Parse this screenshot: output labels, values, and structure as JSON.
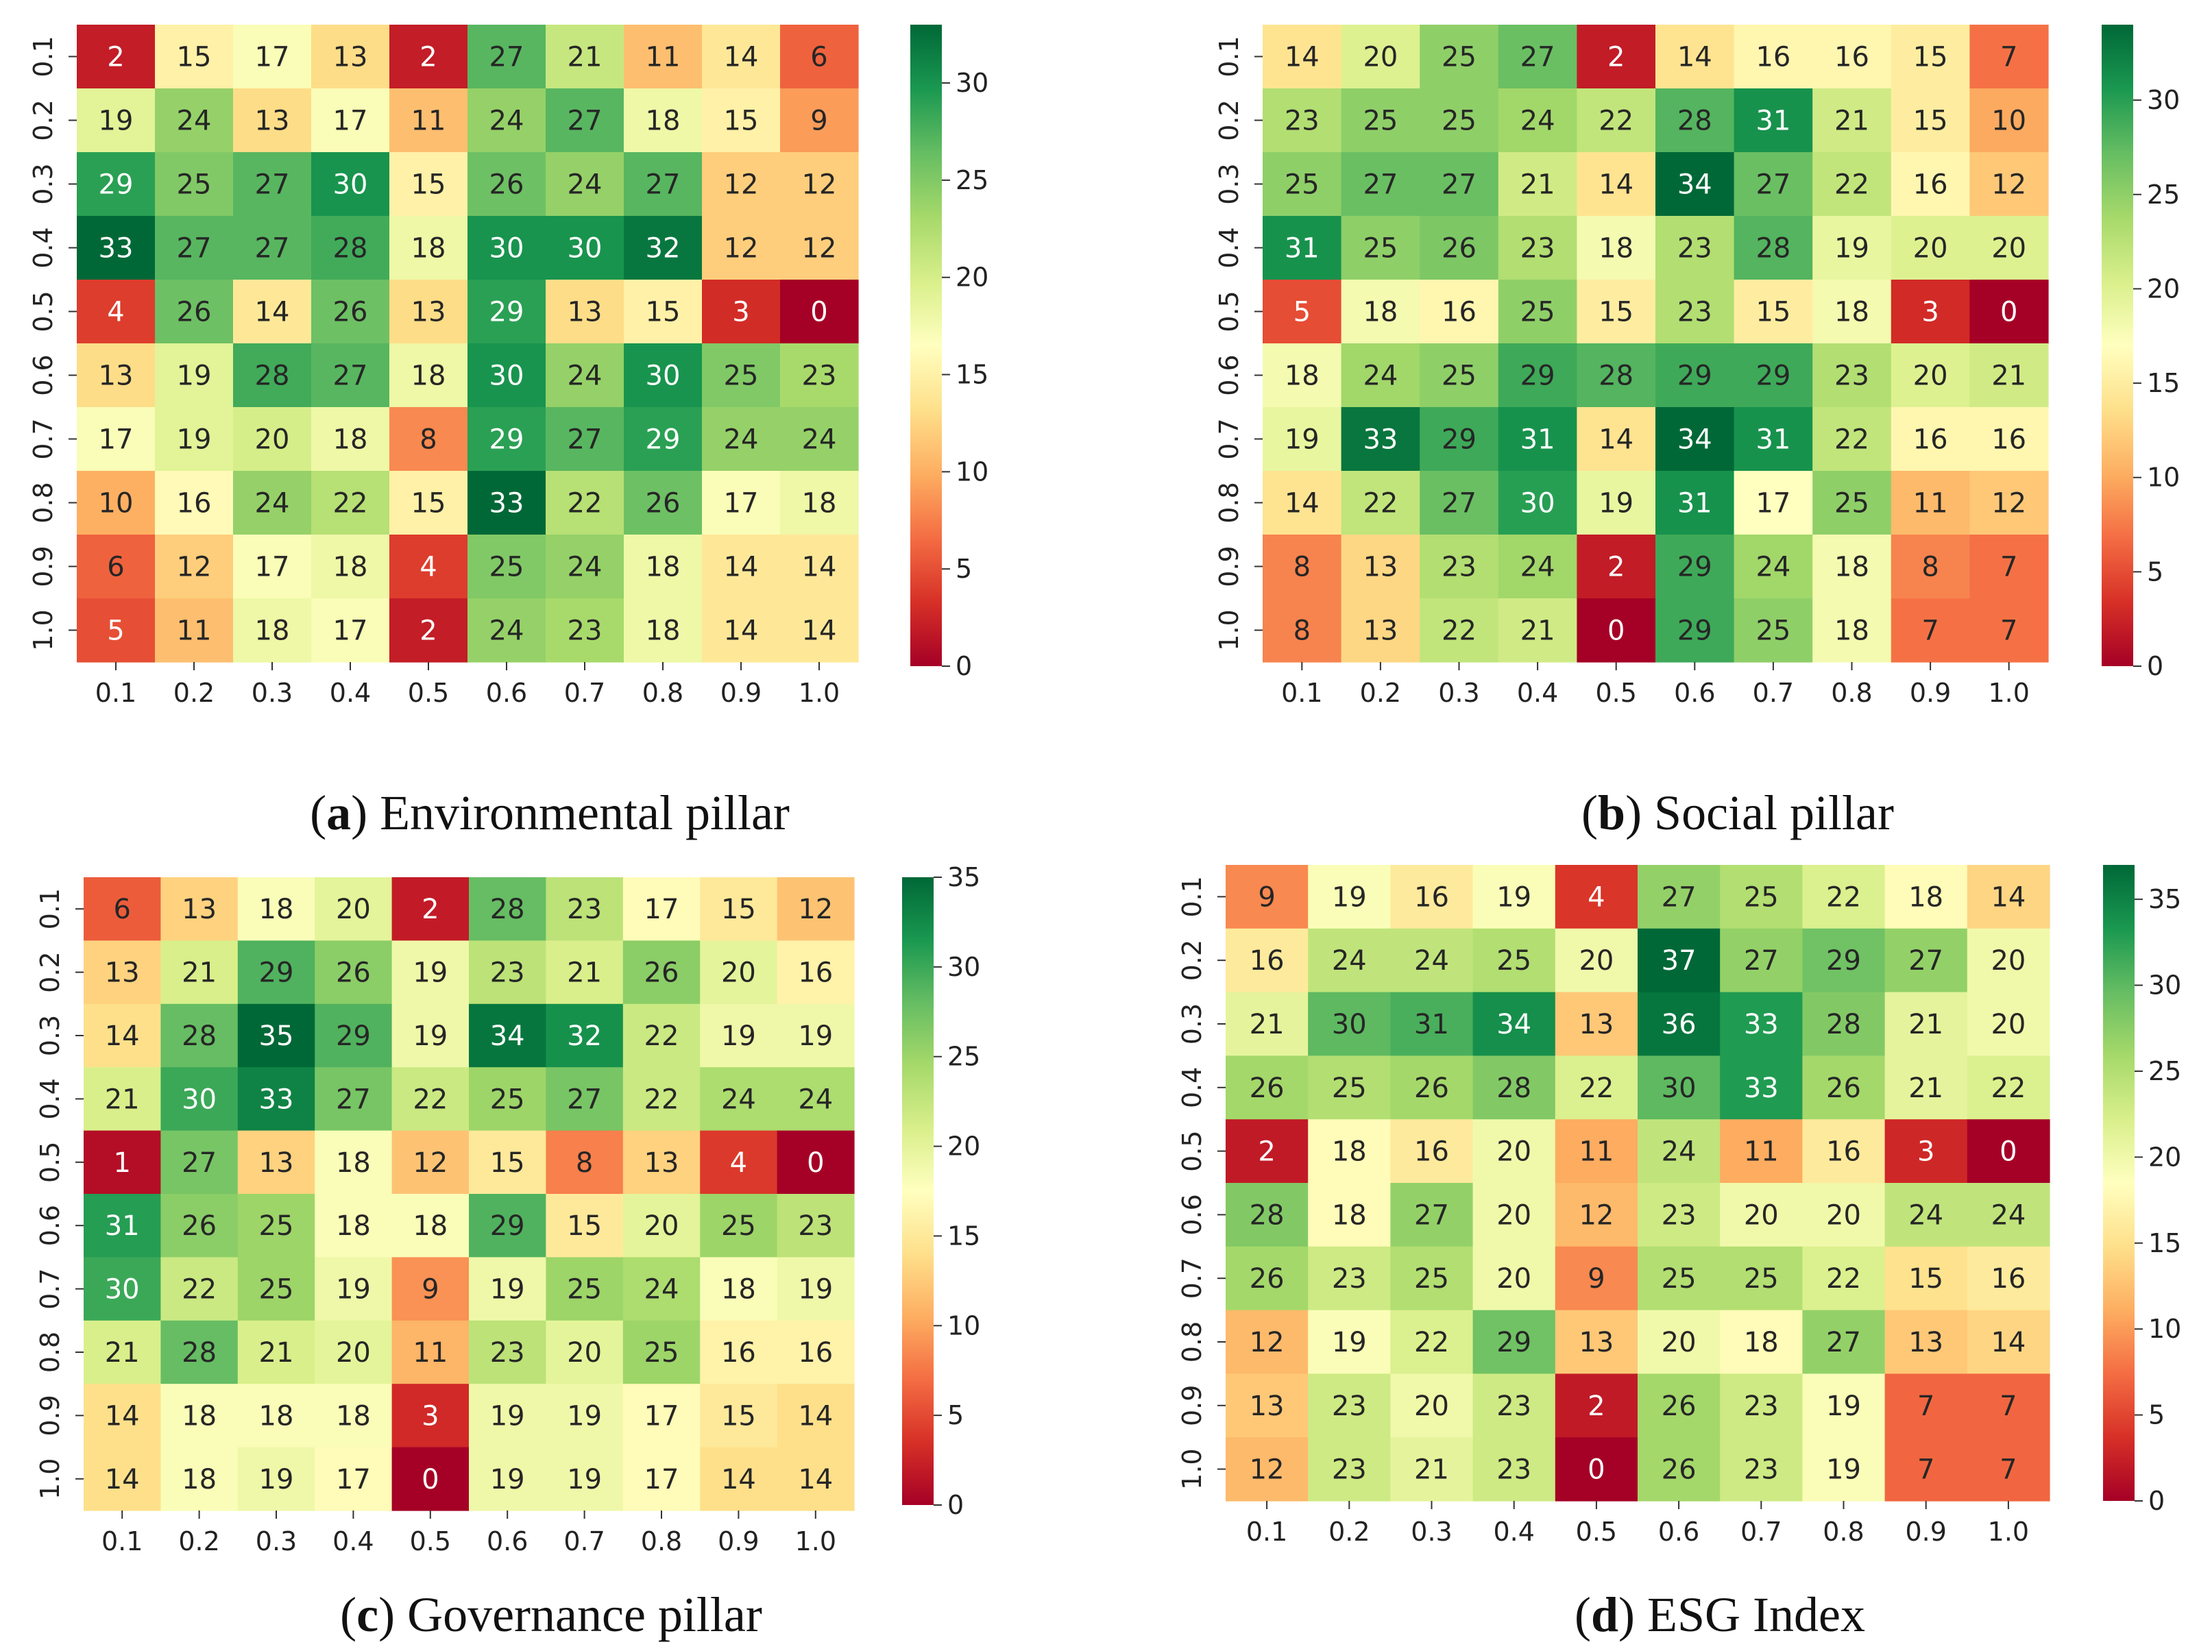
{
  "figure": {
    "colormap": [
      "#a50026",
      "#d73027",
      "#f46d43",
      "#fdae61",
      "#fee08b",
      "#ffffbf",
      "#d9ef8b",
      "#a6d96a",
      "#66bd63",
      "#1a9850",
      "#006837"
    ]
  },
  "chart_data": [
    {
      "type": "heatmap",
      "caption_letter": "a",
      "caption_text": "Environmental pillar",
      "x_ticks": [
        "0.1",
        "0.2",
        "0.3",
        "0.4",
        "0.5",
        "0.6",
        "0.7",
        "0.8",
        "0.9",
        "1.0"
      ],
      "y_ticks": [
        "0.1",
        "0.2",
        "0.3",
        "0.4",
        "0.5",
        "0.6",
        "0.7",
        "0.8",
        "0.9",
        "1.0"
      ],
      "values": [
        [
          2,
          15,
          17,
          13,
          2,
          27,
          21,
          11,
          14,
          6
        ],
        [
          19,
          24,
          13,
          17,
          11,
          24,
          27,
          18,
          15,
          9
        ],
        [
          29,
          25,
          27,
          30,
          15,
          26,
          24,
          27,
          12,
          12
        ],
        [
          33,
          27,
          27,
          28,
          18,
          30,
          30,
          32,
          12,
          12
        ],
        [
          4,
          26,
          14,
          26,
          13,
          29,
          13,
          15,
          3,
          0
        ],
        [
          13,
          19,
          28,
          27,
          18,
          30,
          24,
          30,
          25,
          23
        ],
        [
          17,
          19,
          20,
          18,
          8,
          29,
          27,
          29,
          24,
          24
        ],
        [
          10,
          16,
          24,
          22,
          15,
          33,
          22,
          26,
          17,
          18
        ],
        [
          6,
          12,
          17,
          18,
          4,
          25,
          24,
          18,
          14,
          14
        ],
        [
          5,
          11,
          18,
          17,
          2,
          24,
          23,
          18,
          14,
          14
        ]
      ],
      "vmin": 0,
      "vmax": 33,
      "colorbar_ticks": [
        "0",
        "5",
        "10",
        "15",
        "20",
        "25",
        "30"
      ]
    },
    {
      "type": "heatmap",
      "caption_letter": "b",
      "caption_text": "Social pillar",
      "x_ticks": [
        "0.1",
        "0.2",
        "0.3",
        "0.4",
        "0.5",
        "0.6",
        "0.7",
        "0.8",
        "0.9",
        "1.0"
      ],
      "y_ticks": [
        "0.1",
        "0.2",
        "0.3",
        "0.4",
        "0.5",
        "0.6",
        "0.7",
        "0.8",
        "0.9",
        "1.0"
      ],
      "values": [
        [
          14,
          20,
          25,
          27,
          2,
          14,
          16,
          16,
          15,
          7
        ],
        [
          23,
          25,
          25,
          24,
          22,
          28,
          31,
          21,
          15,
          10
        ],
        [
          25,
          27,
          27,
          21,
          14,
          34,
          27,
          22,
          16,
          12
        ],
        [
          31,
          25,
          26,
          23,
          18,
          23,
          28,
          19,
          20,
          20
        ],
        [
          5,
          18,
          16,
          25,
          15,
          23,
          15,
          18,
          3,
          0
        ],
        [
          18,
          24,
          25,
          29,
          28,
          29,
          29,
          23,
          20,
          21
        ],
        [
          19,
          33,
          29,
          31,
          14,
          34,
          31,
          22,
          16,
          16
        ],
        [
          14,
          22,
          27,
          30,
          19,
          31,
          17,
          25,
          11,
          12
        ],
        [
          8,
          13,
          23,
          24,
          2,
          29,
          24,
          18,
          8,
          7
        ],
        [
          8,
          13,
          22,
          21,
          0,
          29,
          25,
          18,
          7,
          7
        ]
      ],
      "vmin": 0,
      "vmax": 34,
      "colorbar_ticks": [
        "0",
        "5",
        "10",
        "15",
        "20",
        "25",
        "30"
      ]
    },
    {
      "type": "heatmap",
      "caption_letter": "c",
      "caption_text": "Governance pillar",
      "x_ticks": [
        "0.1",
        "0.2",
        "0.3",
        "0.4",
        "0.5",
        "0.6",
        "0.7",
        "0.8",
        "0.9",
        "1.0"
      ],
      "y_ticks": [
        "0.1",
        "0.2",
        "0.3",
        "0.4",
        "0.5",
        "0.6",
        "0.7",
        "0.8",
        "0.9",
        "1.0"
      ],
      "values": [
        [
          6,
          13,
          18,
          20,
          2,
          28,
          23,
          17,
          15,
          12
        ],
        [
          13,
          21,
          29,
          26,
          19,
          23,
          21,
          26,
          20,
          16
        ],
        [
          14,
          28,
          35,
          29,
          19,
          34,
          32,
          22,
          19,
          19
        ],
        [
          21,
          30,
          33,
          27,
          22,
          25,
          27,
          22,
          24,
          24
        ],
        [
          1,
          27,
          13,
          18,
          12,
          15,
          8,
          13,
          4,
          0
        ],
        [
          31,
          26,
          25,
          18,
          18,
          29,
          15,
          20,
          25,
          23
        ],
        [
          30,
          22,
          25,
          19,
          9,
          19,
          25,
          24,
          18,
          19
        ],
        [
          21,
          28,
          21,
          20,
          11,
          23,
          20,
          25,
          16,
          16
        ],
        [
          14,
          18,
          18,
          18,
          3,
          19,
          19,
          17,
          15,
          14
        ],
        [
          14,
          18,
          19,
          17,
          0,
          19,
          19,
          17,
          14,
          14
        ]
      ],
      "vmin": 0,
      "vmax": 35,
      "colorbar_ticks": [
        "0",
        "5",
        "10",
        "15",
        "20",
        "25",
        "30",
        "35"
      ]
    },
    {
      "type": "heatmap",
      "caption_letter": "d",
      "caption_text": "ESG Index",
      "x_ticks": [
        "0.1",
        "0.2",
        "0.3",
        "0.4",
        "0.5",
        "0.6",
        "0.7",
        "0.8",
        "0.9",
        "1.0"
      ],
      "y_ticks": [
        "0.1",
        "0.2",
        "0.3",
        "0.4",
        "0.5",
        "0.6",
        "0.7",
        "0.8",
        "0.9",
        "1.0"
      ],
      "values": [
        [
          9,
          19,
          16,
          19,
          4,
          27,
          25,
          22,
          18,
          14
        ],
        [
          16,
          24,
          24,
          25,
          20,
          37,
          27,
          29,
          27,
          20
        ],
        [
          21,
          30,
          31,
          34,
          13,
          36,
          33,
          28,
          21,
          20
        ],
        [
          26,
          25,
          26,
          28,
          22,
          30,
          33,
          26,
          21,
          22
        ],
        [
          2,
          18,
          16,
          20,
          11,
          24,
          11,
          16,
          3,
          0
        ],
        [
          28,
          18,
          27,
          20,
          12,
          23,
          20,
          20,
          24,
          24
        ],
        [
          26,
          23,
          25,
          20,
          9,
          25,
          25,
          22,
          15,
          16
        ],
        [
          12,
          19,
          22,
          29,
          13,
          20,
          18,
          27,
          13,
          14
        ],
        [
          13,
          23,
          20,
          23,
          2,
          26,
          23,
          19,
          7,
          7
        ],
        [
          12,
          23,
          21,
          23,
          0,
          26,
          23,
          19,
          7,
          7
        ]
      ],
      "vmin": 0,
      "vmax": 37,
      "colorbar_ticks": [
        "0",
        "5",
        "10",
        "15",
        "20",
        "25",
        "30",
        "35"
      ]
    }
  ]
}
